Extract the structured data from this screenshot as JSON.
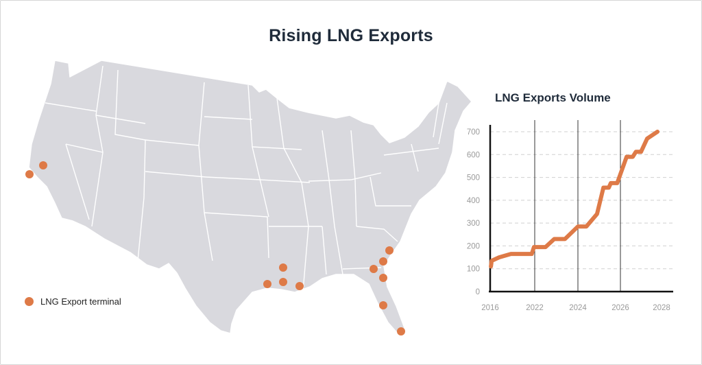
{
  "title": "Rising LNG Exports",
  "legend": {
    "label": "LNG Export terminal",
    "marker_color": "#de7a47"
  },
  "map": {
    "region": "United States (lower 48)",
    "land_color": "#d9d9de",
    "border_color": "#ffffff",
    "terminal_count": 13
  },
  "chart_data": {
    "type": "line",
    "title": "LNG Exports Volume",
    "xlabel": "",
    "ylabel": "",
    "x_ticks": [
      "2016",
      "2022",
      "2024",
      "2026",
      "2028"
    ],
    "y_ticks": [
      "0",
      "100",
      "200",
      "300",
      "400",
      "500",
      "600",
      "700"
    ],
    "ylim": [
      0,
      700
    ],
    "grid": "horizontal dashed, vertical solid at 2022/2024/2026",
    "line_color": "#de7a47",
    "series": [
      {
        "name": "",
        "points": [
          [
            2016.1,
            110
          ],
          [
            2016.2,
            135
          ],
          [
            2017.2,
            150
          ],
          [
            2018.8,
            165
          ],
          [
            2021.6,
            165
          ],
          [
            2021.9,
            195
          ],
          [
            2022.5,
            195
          ],
          [
            2022.9,
            230
          ],
          [
            2023.4,
            230
          ],
          [
            2024.0,
            285
          ],
          [
            2024.4,
            285
          ],
          [
            2024.9,
            340
          ],
          [
            2025.2,
            455
          ],
          [
            2025.45,
            455
          ],
          [
            2025.55,
            475
          ],
          [
            2025.85,
            475
          ],
          [
            2026.3,
            590
          ],
          [
            2026.6,
            590
          ],
          [
            2026.75,
            612
          ],
          [
            2027.0,
            612
          ],
          [
            2027.3,
            670
          ],
          [
            2027.8,
            700
          ]
        ]
      }
    ]
  }
}
